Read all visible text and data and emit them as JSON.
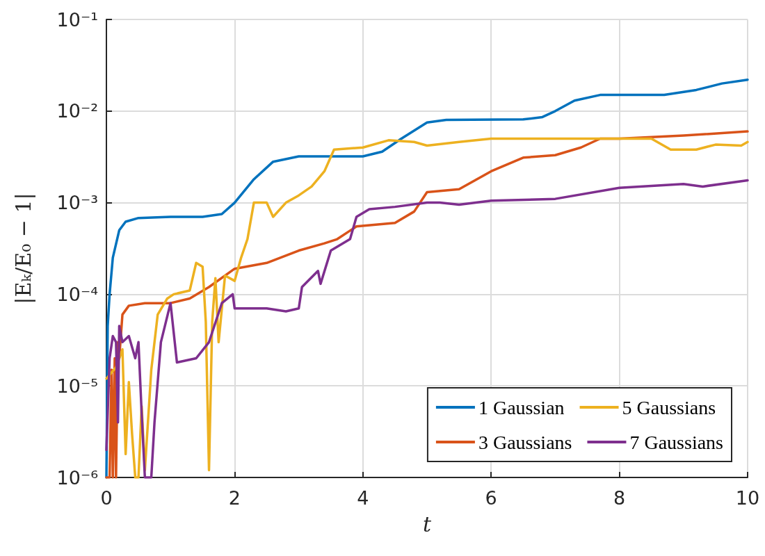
{
  "chart_data": {
    "type": "line",
    "xlabel": "t",
    "ylabel": "|Eₖ/E₀ − 1|",
    "log": "y",
    "grid": true,
    "legend": "bottom right",
    "marker": "none",
    "line_style": "solid",
    "xlim": [
      0,
      10
    ],
    "xticks": [
      0,
      2,
      4,
      6,
      8,
      10
    ],
    "ylim": [
      1e-06,
      0.1
    ],
    "yticks": [
      {
        "value": 1e-06,
        "label": "10⁻⁶"
      },
      {
        "value": 1e-05,
        "label": "10⁻⁵"
      },
      {
        "value": 0.0001,
        "label": "10⁻⁴"
      },
      {
        "value": 0.001,
        "label": "10⁻³"
      },
      {
        "value": 0.01,
        "label": "10⁻²"
      },
      {
        "value": 0.1,
        "label": "10⁻¹"
      }
    ],
    "series": [
      {
        "name": "1 Gaussian",
        "color": "#0072bd",
        "x": [
          0,
          0.02,
          0.05,
          0.1,
          0.2,
          0.3,
          0.5,
          1,
          1.5,
          1.8,
          2,
          2.3,
          2.6,
          3,
          4,
          4.3,
          4.6,
          5,
          5.3,
          6.5,
          6.8,
          7,
          7.3,
          7.7,
          8.7,
          9.2,
          9.6,
          10
        ],
        "values": [
          1e-06,
          4.5e-05,
          0.0001,
          0.00025,
          0.0005,
          0.00062,
          0.00068,
          0.0007,
          0.0007,
          0.00075,
          0.001,
          0.0018,
          0.0028,
          0.0032,
          0.0032,
          0.0036,
          0.005,
          0.0075,
          0.008,
          0.0081,
          0.0086,
          0.01,
          0.013,
          0.015,
          0.015,
          0.017,
          0.02,
          0.022
        ]
      },
      {
        "name": "3 Gaussians",
        "color": "#d95319",
        "x": [
          0,
          0.05,
          0.08,
          0.1,
          0.13,
          0.15,
          0.18,
          0.2,
          0.25,
          0.35,
          0.6,
          1,
          1.3,
          1.6,
          2,
          2.5,
          3,
          3.4,
          3.6,
          3.9,
          4.5,
          4.8,
          5,
          5.5,
          6,
          6.5,
          7,
          7.4,
          7.7,
          8,
          9,
          10
        ],
        "values": [
          1e-06,
          1e-06,
          1.5e-05,
          1e-06,
          2e-05,
          1e-06,
          3e-05,
          2e-05,
          6e-05,
          7.5e-05,
          8e-05,
          8e-05,
          9e-05,
          0.00012,
          0.00019,
          0.00022,
          0.0003,
          0.00036,
          0.0004,
          0.00055,
          0.0006,
          0.0008,
          0.0013,
          0.0014,
          0.0022,
          0.0031,
          0.0033,
          0.004,
          0.005,
          0.005,
          0.0054,
          0.006
        ]
      },
      {
        "name": "5 Gaussians",
        "color": "#edb120",
        "x": [
          0,
          0.15,
          0.25,
          0.3,
          0.35,
          0.4,
          0.45,
          0.5,
          0.55,
          0.6,
          0.7,
          0.8,
          0.95,
          1.05,
          1.3,
          1.4,
          1.5,
          1.55,
          1.6,
          1.65,
          1.7,
          1.75,
          1.85,
          2,
          2.1,
          2.2,
          2.3,
          2.5,
          2.6,
          2.8,
          3,
          3.2,
          3.4,
          3.55,
          4,
          4.4,
          4.8,
          5,
          5.5,
          6,
          7,
          8,
          8.5,
          8.8,
          9.2,
          9.5,
          9.9,
          10
        ],
        "values": [
          1.2e-05,
          1.6e-05,
          2.5e-05,
          1.8e-06,
          1.1e-05,
          3e-06,
          1e-06,
          1e-06,
          6e-06,
          1.2e-06,
          1.5e-05,
          6e-05,
          9e-05,
          0.0001,
          0.00011,
          0.00022,
          0.0002,
          5e-05,
          1.2e-06,
          5e-05,
          0.00015,
          3e-05,
          0.00016,
          0.00014,
          0.00025,
          0.0004,
          0.001,
          0.001,
          0.0007,
          0.001,
          0.0012,
          0.0015,
          0.0022,
          0.0038,
          0.004,
          0.0048,
          0.0046,
          0.0042,
          0.0046,
          0.005,
          0.005,
          0.005,
          0.005,
          0.0038,
          0.0038,
          0.0043,
          0.0042,
          0.0046
        ]
      },
      {
        "name": "7 Gaussians",
        "color": "#7e2f8e",
        "x": [
          0,
          0.05,
          0.1,
          0.15,
          0.18,
          0.2,
          0.25,
          0.35,
          0.45,
          0.5,
          0.55,
          0.6,
          0.7,
          0.75,
          0.85,
          1,
          1.1,
          1.4,
          1.6,
          1.8,
          1.97,
          2,
          2.5,
          2.8,
          3,
          3.05,
          3.3,
          3.34,
          3.5,
          3.8,
          3.9,
          4.1,
          4.5,
          5,
          5.2,
          5.5,
          6,
          7,
          8,
          9,
          9.3,
          10
        ],
        "values": [
          2e-06,
          2e-05,
          3.5e-05,
          3e-05,
          4e-06,
          4.5e-05,
          3e-05,
          3.5e-05,
          2e-05,
          3e-05,
          5e-06,
          1e-06,
          1e-06,
          4e-06,
          3e-05,
          8e-05,
          1.8e-05,
          2e-05,
          3e-05,
          8e-05,
          0.0001,
          7e-05,
          7e-05,
          6.5e-05,
          7e-05,
          0.00012,
          0.00018,
          0.00013,
          0.0003,
          0.0004,
          0.0007,
          0.00085,
          0.0009,
          0.001,
          0.001,
          0.00095,
          0.00105,
          0.0011,
          0.00145,
          0.0016,
          0.0015,
          0.00175
        ]
      }
    ]
  }
}
